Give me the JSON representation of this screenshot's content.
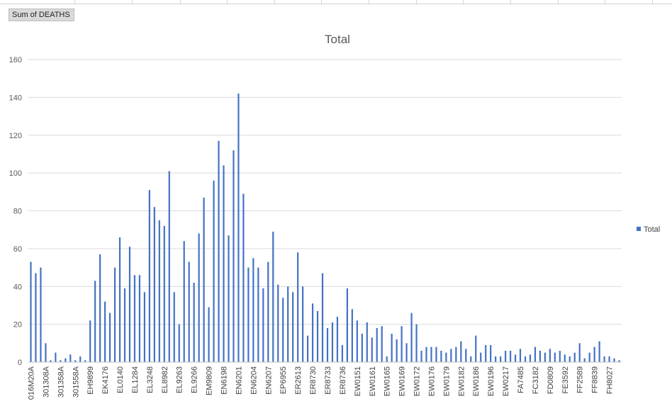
{
  "pivot": {
    "field_button_label": "Sum of DEATHS"
  },
  "colors": {
    "series": "#4472C4",
    "grid": "#d9d9d9",
    "text": "#595959"
  },
  "chart_data": {
    "type": "bar",
    "title": "Total",
    "xlabel": "",
    "ylabel": "",
    "ylim": [
      0,
      160
    ],
    "yticks": [
      0,
      20,
      40,
      60,
      80,
      100,
      120,
      140,
      160
    ],
    "grid": true,
    "legend": {
      "position": "right",
      "entries": [
        "Total"
      ]
    },
    "category_labels": [
      "016M20A",
      "301308A",
      "301358A",
      "301558A",
      "EH9899",
      "EK4176",
      "EL0140",
      "EL1284",
      "EL3248",
      "EL8982",
      "EL9263",
      "EL9266",
      "EM9809",
      "EN6198",
      "EN6201",
      "EN6204",
      "EN6207",
      "EP6955",
      "ER2613",
      "ER8730",
      "ER8733",
      "ER8736",
      "EW0151",
      "EW0161",
      "EW0165",
      "EW0169",
      "EW0172",
      "EW0176",
      "EW0179",
      "EW0182",
      "EW0186",
      "EW0196",
      "EW0217",
      "FA7485",
      "FC3182",
      "FD0809",
      "FE3592",
      "FF2589",
      "FF8839",
      "FH8027"
    ],
    "series": [
      {
        "name": "Total",
        "values": [
          53,
          47,
          50,
          10,
          1,
          5,
          1,
          2,
          4,
          1,
          3,
          1,
          22,
          43,
          57,
          32,
          26,
          50,
          66,
          39,
          61,
          46,
          46,
          37,
          91,
          82,
          75,
          72,
          101,
          37,
          20,
          64,
          53,
          42,
          68,
          87,
          29,
          96,
          117,
          104,
          67,
          112,
          142,
          89,
          50,
          55,
          50,
          39,
          53,
          69,
          41,
          34,
          40,
          37,
          58,
          40,
          14,
          31,
          27,
          47,
          18,
          21,
          24,
          9,
          39,
          28,
          22,
          15,
          21,
          13,
          18,
          19,
          3,
          15,
          12,
          19,
          10,
          26,
          20,
          6,
          8,
          8,
          8,
          6,
          5,
          7,
          8,
          11,
          7,
          3,
          14,
          5,
          9,
          9,
          3,
          3,
          6,
          6,
          4,
          7,
          3,
          4,
          8,
          6,
          5,
          7,
          5,
          6,
          4,
          3,
          5,
          10,
          2,
          5,
          8,
          11,
          3,
          3,
          2,
          1
        ]
      }
    ]
  }
}
